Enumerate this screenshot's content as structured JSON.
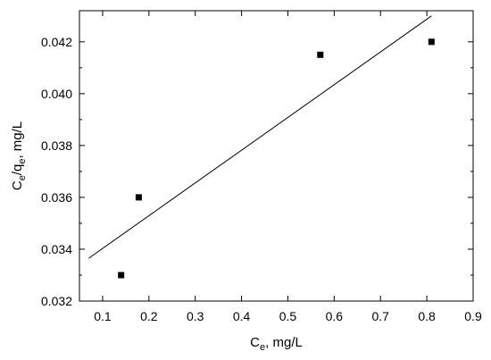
{
  "chart_data": {
    "type": "scatter",
    "title": "",
    "xlabel": {
      "main": "C",
      "sub": "e",
      "suffix": ", mg/L"
    },
    "ylabel": {
      "main1": "C",
      "sub1": "e",
      "mid": "/q",
      "sub2": "e",
      "suffix": ", mg/L"
    },
    "xlim": [
      0.05,
      0.9
    ],
    "ylim": [
      0.032,
      0.0432
    ],
    "x_ticks": [
      0.1,
      0.2,
      0.3,
      0.4,
      0.5,
      0.6,
      0.7,
      0.8,
      0.9
    ],
    "x_tick_labels": [
      "0.1",
      "0.2",
      "0.3",
      "0.4",
      "0.5",
      "0.6",
      "0.7",
      "0.8",
      "0.9"
    ],
    "y_ticks": [
      0.032,
      0.034,
      0.036,
      0.038,
      0.04,
      0.042
    ],
    "y_tick_labels": [
      "0.032",
      "0.034",
      "0.036",
      "0.038",
      "0.040",
      "0.042"
    ],
    "series": [
      {
        "marker": "square",
        "color": "#000000",
        "x": [
          0.14,
          0.178,
          0.57,
          0.81
        ],
        "y": [
          0.033,
          0.036,
          0.0415,
          0.042
        ]
      }
    ],
    "fit_line": {
      "color": "#000000",
      "x": [
        0.07,
        0.81
      ],
      "y": [
        0.03365,
        0.043
      ]
    },
    "grid": false,
    "legend": "none"
  }
}
